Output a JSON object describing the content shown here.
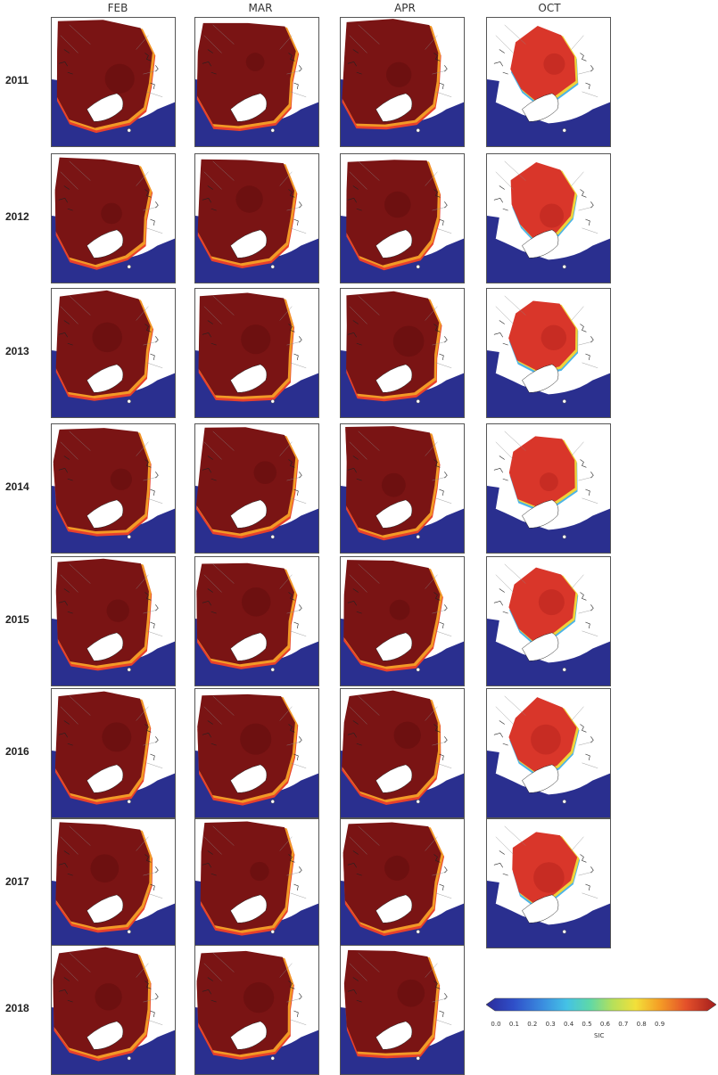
{
  "figure": {
    "columns": [
      "FEB",
      "MAR",
      "APR",
      "OCT"
    ],
    "rows": [
      {
        "year": "2011",
        "months": [
          "FEB",
          "MAR",
          "APR",
          "OCT"
        ]
      },
      {
        "year": "2012",
        "months": [
          "FEB",
          "MAR",
          "APR",
          "OCT"
        ]
      },
      {
        "year": "2013",
        "months": [
          "FEB",
          "MAR",
          "APR",
          "OCT"
        ]
      },
      {
        "year": "2014",
        "months": [
          "FEB",
          "MAR",
          "APR",
          "OCT"
        ]
      },
      {
        "year": "2015",
        "months": [
          "FEB",
          "MAR",
          "APR",
          "OCT"
        ]
      },
      {
        "year": "2016",
        "months": [
          "FEB",
          "MAR",
          "APR",
          "OCT"
        ]
      },
      {
        "year": "2017",
        "months": [
          "FEB",
          "MAR",
          "APR",
          "OCT"
        ]
      },
      {
        "year": "2018",
        "months": [
          "FEB",
          "MAR",
          "APR"
        ]
      }
    ]
  },
  "colorbar": {
    "label": "SIC",
    "ticks": [
      "0.0",
      "0.1",
      "0.2",
      "0.3",
      "0.4",
      "0.5",
      "0.6",
      "0.7",
      "0.8",
      "0.9"
    ],
    "colors": [
      "#2b2b9a",
      "#2f4fc9",
      "#3b8fe0",
      "#44c2e6",
      "#5ed8a8",
      "#b6e05a",
      "#f2e03a",
      "#f5a026",
      "#e4502a",
      "#a31d1d"
    ]
  },
  "palette": {
    "ocean": "#2a2f8f",
    "ice_winter": "#7a1414",
    "ice_autumn": "#d9362a",
    "land": "#ffffff",
    "greenland": "#ffffff"
  }
}
